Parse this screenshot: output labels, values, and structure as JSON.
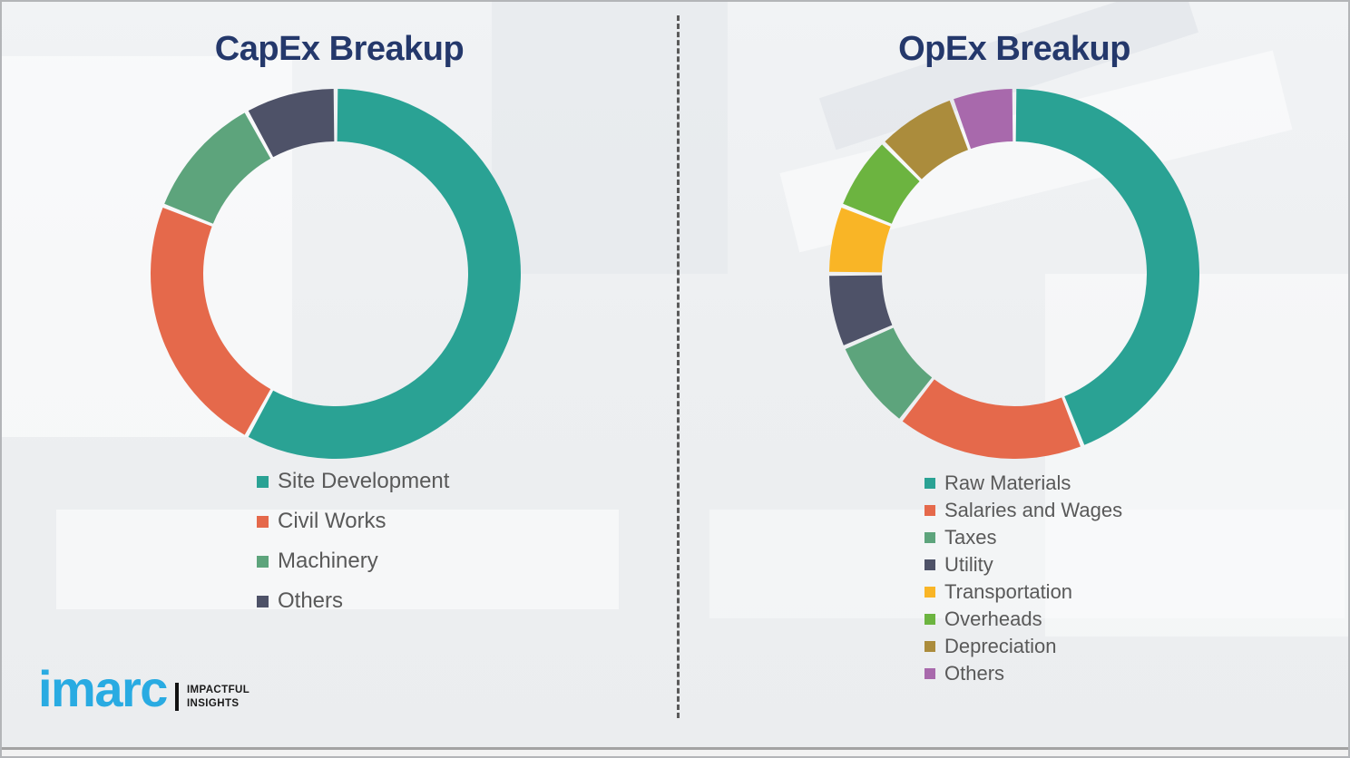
{
  "chart_data": [
    {
      "type": "donut",
      "title": "CapEx Breakup",
      "legend_position": "bottom",
      "start_angle_deg": 0,
      "direction": "clockwise",
      "categories": [
        "Site Development",
        "Civil Works",
        "Machinery",
        "Others"
      ],
      "values": [
        58,
        23,
        11,
        8
      ],
      "colors": [
        "#2AA294",
        "#E5694B",
        "#5DA47C",
        "#4E5268"
      ],
      "values_note": "percent, estimated from arc angles (no data labels shown)"
    },
    {
      "type": "donut",
      "title": "OpEx Breakup",
      "legend_position": "bottom",
      "start_angle_deg": 0,
      "direction": "clockwise",
      "categories": [
        "Raw Materials",
        "Salaries and Wages",
        "Taxes",
        "Utility",
        "Transportation",
        "Overheads",
        "Depreciation",
        "Others"
      ],
      "values": [
        44,
        16.5,
        8,
        6.5,
        6,
        6.5,
        7,
        5.5
      ],
      "colors": [
        "#2AA294",
        "#E5694B",
        "#5DA47C",
        "#4E5268",
        "#F9B526",
        "#6CB440",
        "#AB8C3C",
        "#A869AC"
      ],
      "values_note": "percent, estimated from arc angles (no data labels shown)"
    }
  ],
  "logo": {
    "brand": "imarc",
    "tagline_line1": "IMPACTFUL",
    "tagline_line2": "INSIGHTS",
    "brand_color": "#29ABE2"
  },
  "style": {
    "title_color": "#24386B",
    "legend_text_color": "#595959",
    "divider_color": "#5a5a5a",
    "background_color": "#EDEFF1"
  }
}
